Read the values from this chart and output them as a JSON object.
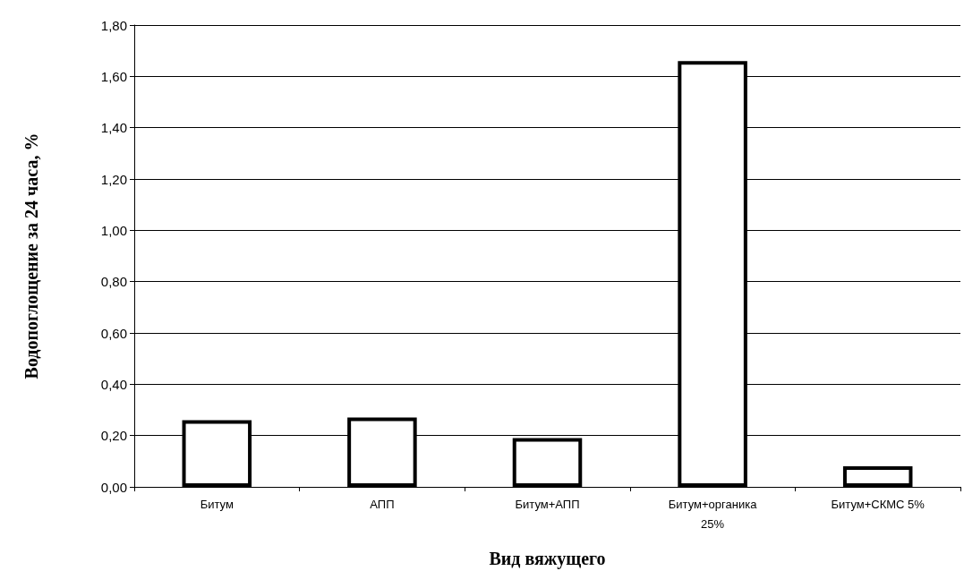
{
  "chart_data": {
    "type": "bar",
    "xlabel": "Вид вяжущего",
    "ylabel": "Водопоглощение за 24 часа, %",
    "categories": [
      "Битум",
      "АПП",
      "Битум+АПП",
      "Битум+органика 25%",
      "Битум+СКМС 5%"
    ],
    "values": [
      0.26,
      0.27,
      0.19,
      1.66,
      0.08
    ],
    "color": "#ffffff",
    "ylim": [
      0,
      1.8
    ],
    "yticks": [
      {
        "value": 0,
        "label": "0,00"
      },
      {
        "value": 0.2,
        "label": "0,20"
      },
      {
        "value": 0.4,
        "label": "0,40"
      },
      {
        "value": 0.6,
        "label": "0,60"
      },
      {
        "value": 0.8,
        "label": "0,80"
      },
      {
        "value": 1,
        "label": "1,00"
      },
      {
        "value": 1.2,
        "label": "1,20"
      },
      {
        "value": 1.4,
        "label": "1,40"
      },
      {
        "value": 1.6,
        "label": "1,60"
      },
      {
        "value": 1.8,
        "label": "1,80"
      }
    ],
    "grid": "y"
  }
}
